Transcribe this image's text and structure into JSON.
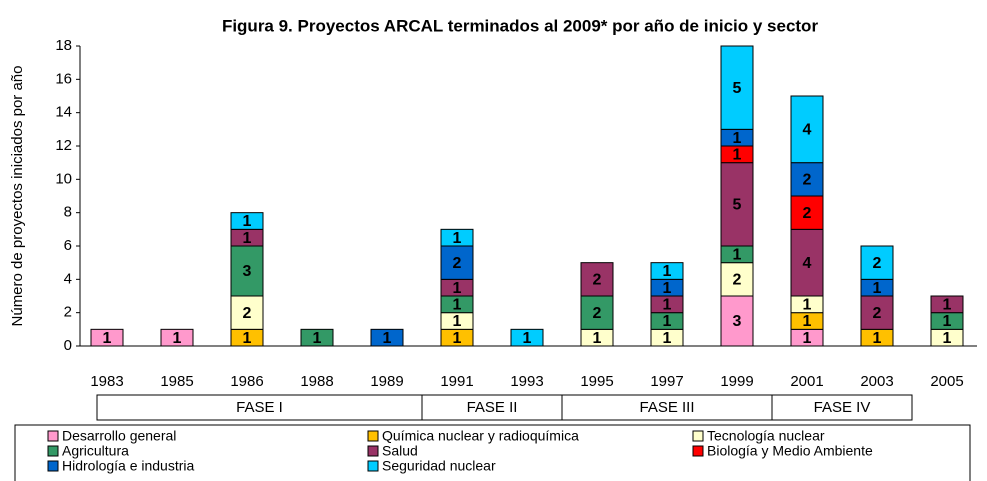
{
  "chart_data": {
    "type": "stacked_bar",
    "title": "Figura 9. Proyectos ARCAL terminados al 2009* por año de inicio y sector",
    "y_label": "Número de proyectos iniciados por año",
    "categories": [
      "1983",
      "1985",
      "1986",
      "1988",
      "1989",
      "1991",
      "1993",
      "1995",
      "1997",
      "1999",
      "2001",
      "2003",
      "2005"
    ],
    "series": [
      {
        "name": "Desarrollo general",
        "color": "#ff99cc",
        "values": [
          1,
          1,
          null,
          null,
          null,
          null,
          null,
          null,
          null,
          3,
          1,
          null,
          null
        ]
      },
      {
        "name": "Química nuclear y radioquímica",
        "color": "#ffc000",
        "values": [
          null,
          null,
          1,
          null,
          null,
          1,
          null,
          null,
          null,
          null,
          1,
          1,
          null
        ]
      },
      {
        "name": "Tecnología nuclear",
        "color": "#ffffcc",
        "values": [
          null,
          null,
          2,
          null,
          null,
          1,
          null,
          1,
          1,
          2,
          1,
          null,
          1
        ]
      },
      {
        "name": "Agricultura",
        "color": "#339966",
        "values": [
          null,
          null,
          3,
          1,
          null,
          1,
          null,
          2,
          1,
          1,
          null,
          null,
          1
        ]
      },
      {
        "name": "Salud",
        "color": "#993366",
        "values": [
          null,
          null,
          1,
          null,
          null,
          1,
          null,
          2,
          1,
          5,
          4,
          2,
          1
        ]
      },
      {
        "name": "Biología y Medio Ambiente",
        "color": "#ff0000",
        "values": [
          null,
          null,
          null,
          null,
          null,
          null,
          null,
          null,
          null,
          1,
          2,
          null,
          null
        ]
      },
      {
        "name": "Hidrología e industria",
        "color": "#0066cc",
        "values": [
          null,
          null,
          null,
          null,
          1,
          2,
          null,
          null,
          1,
          1,
          2,
          1,
          null
        ]
      },
      {
        "name": "Seguridad nuclear",
        "color": "#00ccff",
        "values": [
          null,
          null,
          1,
          null,
          null,
          1,
          1,
          null,
          1,
          5,
          4,
          2,
          null
        ]
      }
    ],
    "phases": [
      {
        "label": "FASE I",
        "from": "1983",
        "to": "1989"
      },
      {
        "label": "FASE II",
        "from": "1991",
        "to": "1993"
      },
      {
        "label": "FASE III",
        "from": "1995",
        "to": "1999"
      },
      {
        "label": "FASE IV",
        "from": "2001",
        "to": "2003"
      }
    ],
    "ylim": [
      0,
      18
    ],
    "yticks": [
      0,
      2,
      4,
      6,
      8,
      10,
      12,
      14,
      16,
      18
    ],
    "grid": false
  }
}
